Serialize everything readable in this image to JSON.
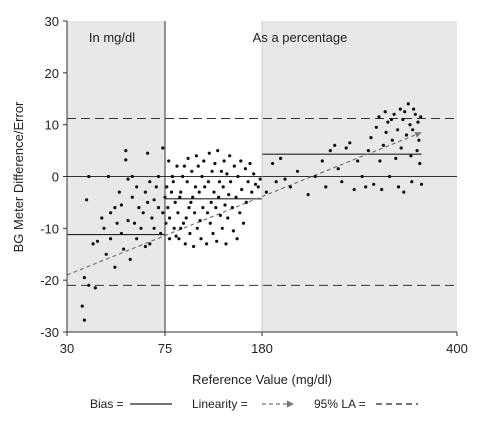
{
  "chart_data": {
    "type": "scatter",
    "title": "",
    "xlabel": "Reference Value (mg/dl)",
    "ylabel": "BG Meter Difference/Error",
    "ylim": [
      -30,
      30
    ],
    "yticks": [
      -30,
      -20,
      -10,
      0,
      10,
      20,
      30
    ],
    "xticks": [
      "30",
      "75",
      "180",
      "400"
    ],
    "x_scale": "segmented",
    "grid": false,
    "regions": [
      {
        "label": "In mg/dl",
        "x_range": [
          30,
          75
        ],
        "shaded": true
      },
      {
        "label": "",
        "x_range": [
          75,
          180
        ],
        "shaded": false
      },
      {
        "label": "As a percentage",
        "x_range": [
          180,
          400
        ],
        "shaded": true
      }
    ],
    "reference_lines": {
      "zero": 0,
      "la_upper": 11.2,
      "la_lower": -21,
      "bias_segments": [
        {
          "x": [
            30,
            75
          ],
          "y": -11.2
        },
        {
          "x": [
            75,
            180
          ],
          "y": -4.3
        },
        {
          "x": [
            180,
            360
          ],
          "y": 4.3
        }
      ],
      "linearity": {
        "x": [
          30,
          360
        ],
        "y": [
          -19,
          8.5
        ]
      }
    },
    "legend": {
      "position": "bottom",
      "items": [
        {
          "label": "Bias =",
          "style": "solid"
        },
        {
          "label": "Linearity =",
          "style": "dashed-arrow"
        },
        {
          "label": "95% LA =",
          "style": "dashed"
        }
      ]
    },
    "colors": {
      "shade": "#e8e8e8",
      "points": "#111111",
      "lines": "#444444",
      "linearity": "#777777"
    },
    "points": [
      [
        38,
        -27.7
      ],
      [
        37,
        -25
      ],
      [
        38,
        -19.5
      ],
      [
        40,
        -21
      ],
      [
        43,
        -21.5
      ],
      [
        39,
        -4.5
      ],
      [
        40,
        0
      ],
      [
        42,
        -13
      ],
      [
        44,
        -12.5
      ],
      [
        46,
        -8
      ],
      [
        47,
        -10
      ],
      [
        48,
        -15
      ],
      [
        49,
        0
      ],
      [
        50,
        -7
      ],
      [
        50,
        -12
      ],
      [
        52,
        -6
      ],
      [
        52,
        -17.5
      ],
      [
        53,
        -9
      ],
      [
        54,
        -3
      ],
      [
        55,
        -11
      ],
      [
        55,
        -5.5
      ],
      [
        56,
        -14
      ],
      [
        57,
        3.2
      ],
      [
        57,
        5
      ],
      [
        58,
        -8.5
      ],
      [
        58,
        -0.5
      ],
      [
        59,
        -16
      ],
      [
        60,
        -4
      ],
      [
        60,
        0
      ],
      [
        61,
        -9
      ],
      [
        62,
        -2
      ],
      [
        62,
        -12
      ],
      [
        63,
        -6
      ],
      [
        64,
        -10
      ],
      [
        65,
        -7
      ],
      [
        66,
        -3
      ],
      [
        66,
        -13.5
      ],
      [
        67,
        -5
      ],
      [
        67,
        4.5
      ],
      [
        68,
        -1
      ],
      [
        68,
        -13
      ],
      [
        69,
        -8
      ],
      [
        70,
        -4.5
      ],
      [
        70,
        -10
      ],
      [
        71,
        -2
      ],
      [
        72,
        -6
      ],
      [
        72,
        0
      ],
      [
        73,
        -11
      ],
      [
        74,
        -7
      ],
      [
        74,
        5.5
      ],
      [
        75,
        -4
      ],
      [
        76,
        -9
      ],
      [
        77,
        -2
      ],
      [
        78,
        -6
      ],
      [
        79,
        3
      ],
      [
        80,
        -12
      ],
      [
        80,
        -8
      ],
      [
        82,
        -3
      ],
      [
        83,
        0
      ],
      [
        84,
        -1
      ],
      [
        85,
        -10
      ],
      [
        86,
        -5
      ],
      [
        87,
        -11.5
      ],
      [
        88,
        2
      ],
      [
        89,
        -7
      ],
      [
        90,
        -12
      ],
      [
        91,
        -4
      ],
      [
        92,
        -3
      ],
      [
        92,
        -10
      ],
      [
        94,
        0
      ],
      [
        95,
        -9
      ],
      [
        96,
        2
      ],
      [
        97,
        -13
      ],
      [
        98,
        -8
      ],
      [
        99,
        -1
      ],
      [
        100,
        3.5
      ],
      [
        101,
        -6
      ],
      [
        102,
        -11
      ],
      [
        103,
        -5
      ],
      [
        104,
        1
      ],
      [
        105,
        -4
      ],
      [
        106,
        -13.5
      ],
      [
        107,
        -7
      ],
      [
        108,
        -2
      ],
      [
        109,
        4
      ],
      [
        110,
        -10
      ],
      [
        111,
        2
      ],
      [
        112,
        -3
      ],
      [
        113,
        -8.5
      ],
      [
        114,
        -12
      ],
      [
        115,
        0
      ],
      [
        116,
        -6
      ],
      [
        117,
        3
      ],
      [
        118,
        -2
      ],
      [
        120,
        -13
      ],
      [
        121,
        -7
      ],
      [
        122,
        -1
      ],
      [
        123,
        4.5
      ],
      [
        124,
        -9
      ],
      [
        125,
        -5
      ],
      [
        126,
        1
      ],
      [
        127,
        -11
      ],
      [
        128,
        -3
      ],
      [
        129,
        2.5
      ],
      [
        130,
        -6
      ],
      [
        131,
        -12.5
      ],
      [
        132,
        5
      ],
      [
        133,
        -4
      ],
      [
        134,
        -1
      ],
      [
        135,
        -7.5
      ],
      [
        136,
        1
      ],
      [
        137,
        -10
      ],
      [
        138,
        -2
      ],
      [
        139,
        3
      ],
      [
        140,
        -5.5
      ],
      [
        141,
        -13
      ],
      [
        142,
        0.5
      ],
      [
        143,
        -8
      ],
      [
        144,
        -3.5
      ],
      [
        145,
        4
      ],
      [
        146,
        -1
      ],
      [
        148,
        -6
      ],
      [
        149,
        -10.5
      ],
      [
        150,
        2
      ],
      [
        152,
        -4
      ],
      [
        153,
        -12
      ],
      [
        154,
        0
      ],
      [
        156,
        -7
      ],
      [
        157,
        3
      ],
      [
        158,
        -2.5
      ],
      [
        160,
        -9
      ],
      [
        162,
        1.5
      ],
      [
        163,
        -5
      ],
      [
        165,
        -1
      ],
      [
        167,
        2.5
      ],
      [
        169,
        -3
      ],
      [
        171,
        0.5
      ],
      [
        173,
        -1.5
      ],
      [
        176,
        -2
      ],
      [
        178,
        -0.5
      ],
      [
        185,
        -3
      ],
      [
        192,
        2.5
      ],
      [
        196,
        -1
      ],
      [
        201,
        3.5
      ],
      [
        206,
        -0.5
      ],
      [
        212,
        -2
      ],
      [
        220,
        1
      ],
      [
        232,
        -3.5
      ],
      [
        240,
        0
      ],
      [
        248,
        3
      ],
      [
        252,
        -2
      ],
      [
        257,
        5
      ],
      [
        262,
        6
      ],
      [
        266,
        1.5
      ],
      [
        270,
        -1
      ],
      [
        275,
        5.5
      ],
      [
        279,
        6.5
      ],
      [
        284,
        -2.5
      ],
      [
        288,
        3
      ],
      [
        293,
        0
      ],
      [
        297,
        -2
      ],
      [
        300,
        5
      ],
      [
        303,
        7.5
      ],
      [
        306,
        -1.5
      ],
      [
        309,
        9.5
      ],
      [
        312,
        11.5
      ],
      [
        313,
        3
      ],
      [
        315,
        -2.5
      ],
      [
        317,
        6
      ],
      [
        319,
        12.5
      ],
      [
        320,
        8.5
      ],
      [
        322,
        10.5
      ],
      [
        324,
        0
      ],
      [
        326,
        11
      ],
      [
        327,
        7
      ],
      [
        329,
        12
      ],
      [
        331,
        3.5
      ],
      [
        333,
        9
      ],
      [
        334,
        -2
      ],
      [
        336,
        13
      ],
      [
        337,
        5.5
      ],
      [
        339,
        11
      ],
      [
        340,
        -3
      ],
      [
        341,
        12.5
      ],
      [
        343,
        8
      ],
      [
        345,
        14
      ],
      [
        347,
        10
      ],
      [
        348,
        4
      ],
      [
        349,
        -1
      ],
      [
        350,
        9
      ],
      [
        351,
        13
      ],
      [
        353,
        12
      ],
      [
        355,
        5
      ],
      [
        356,
        10.5
      ],
      [
        357,
        7
      ],
      [
        358,
        2.5
      ],
      [
        359,
        11.5
      ],
      [
        360,
        -1.5
      ]
    ]
  }
}
